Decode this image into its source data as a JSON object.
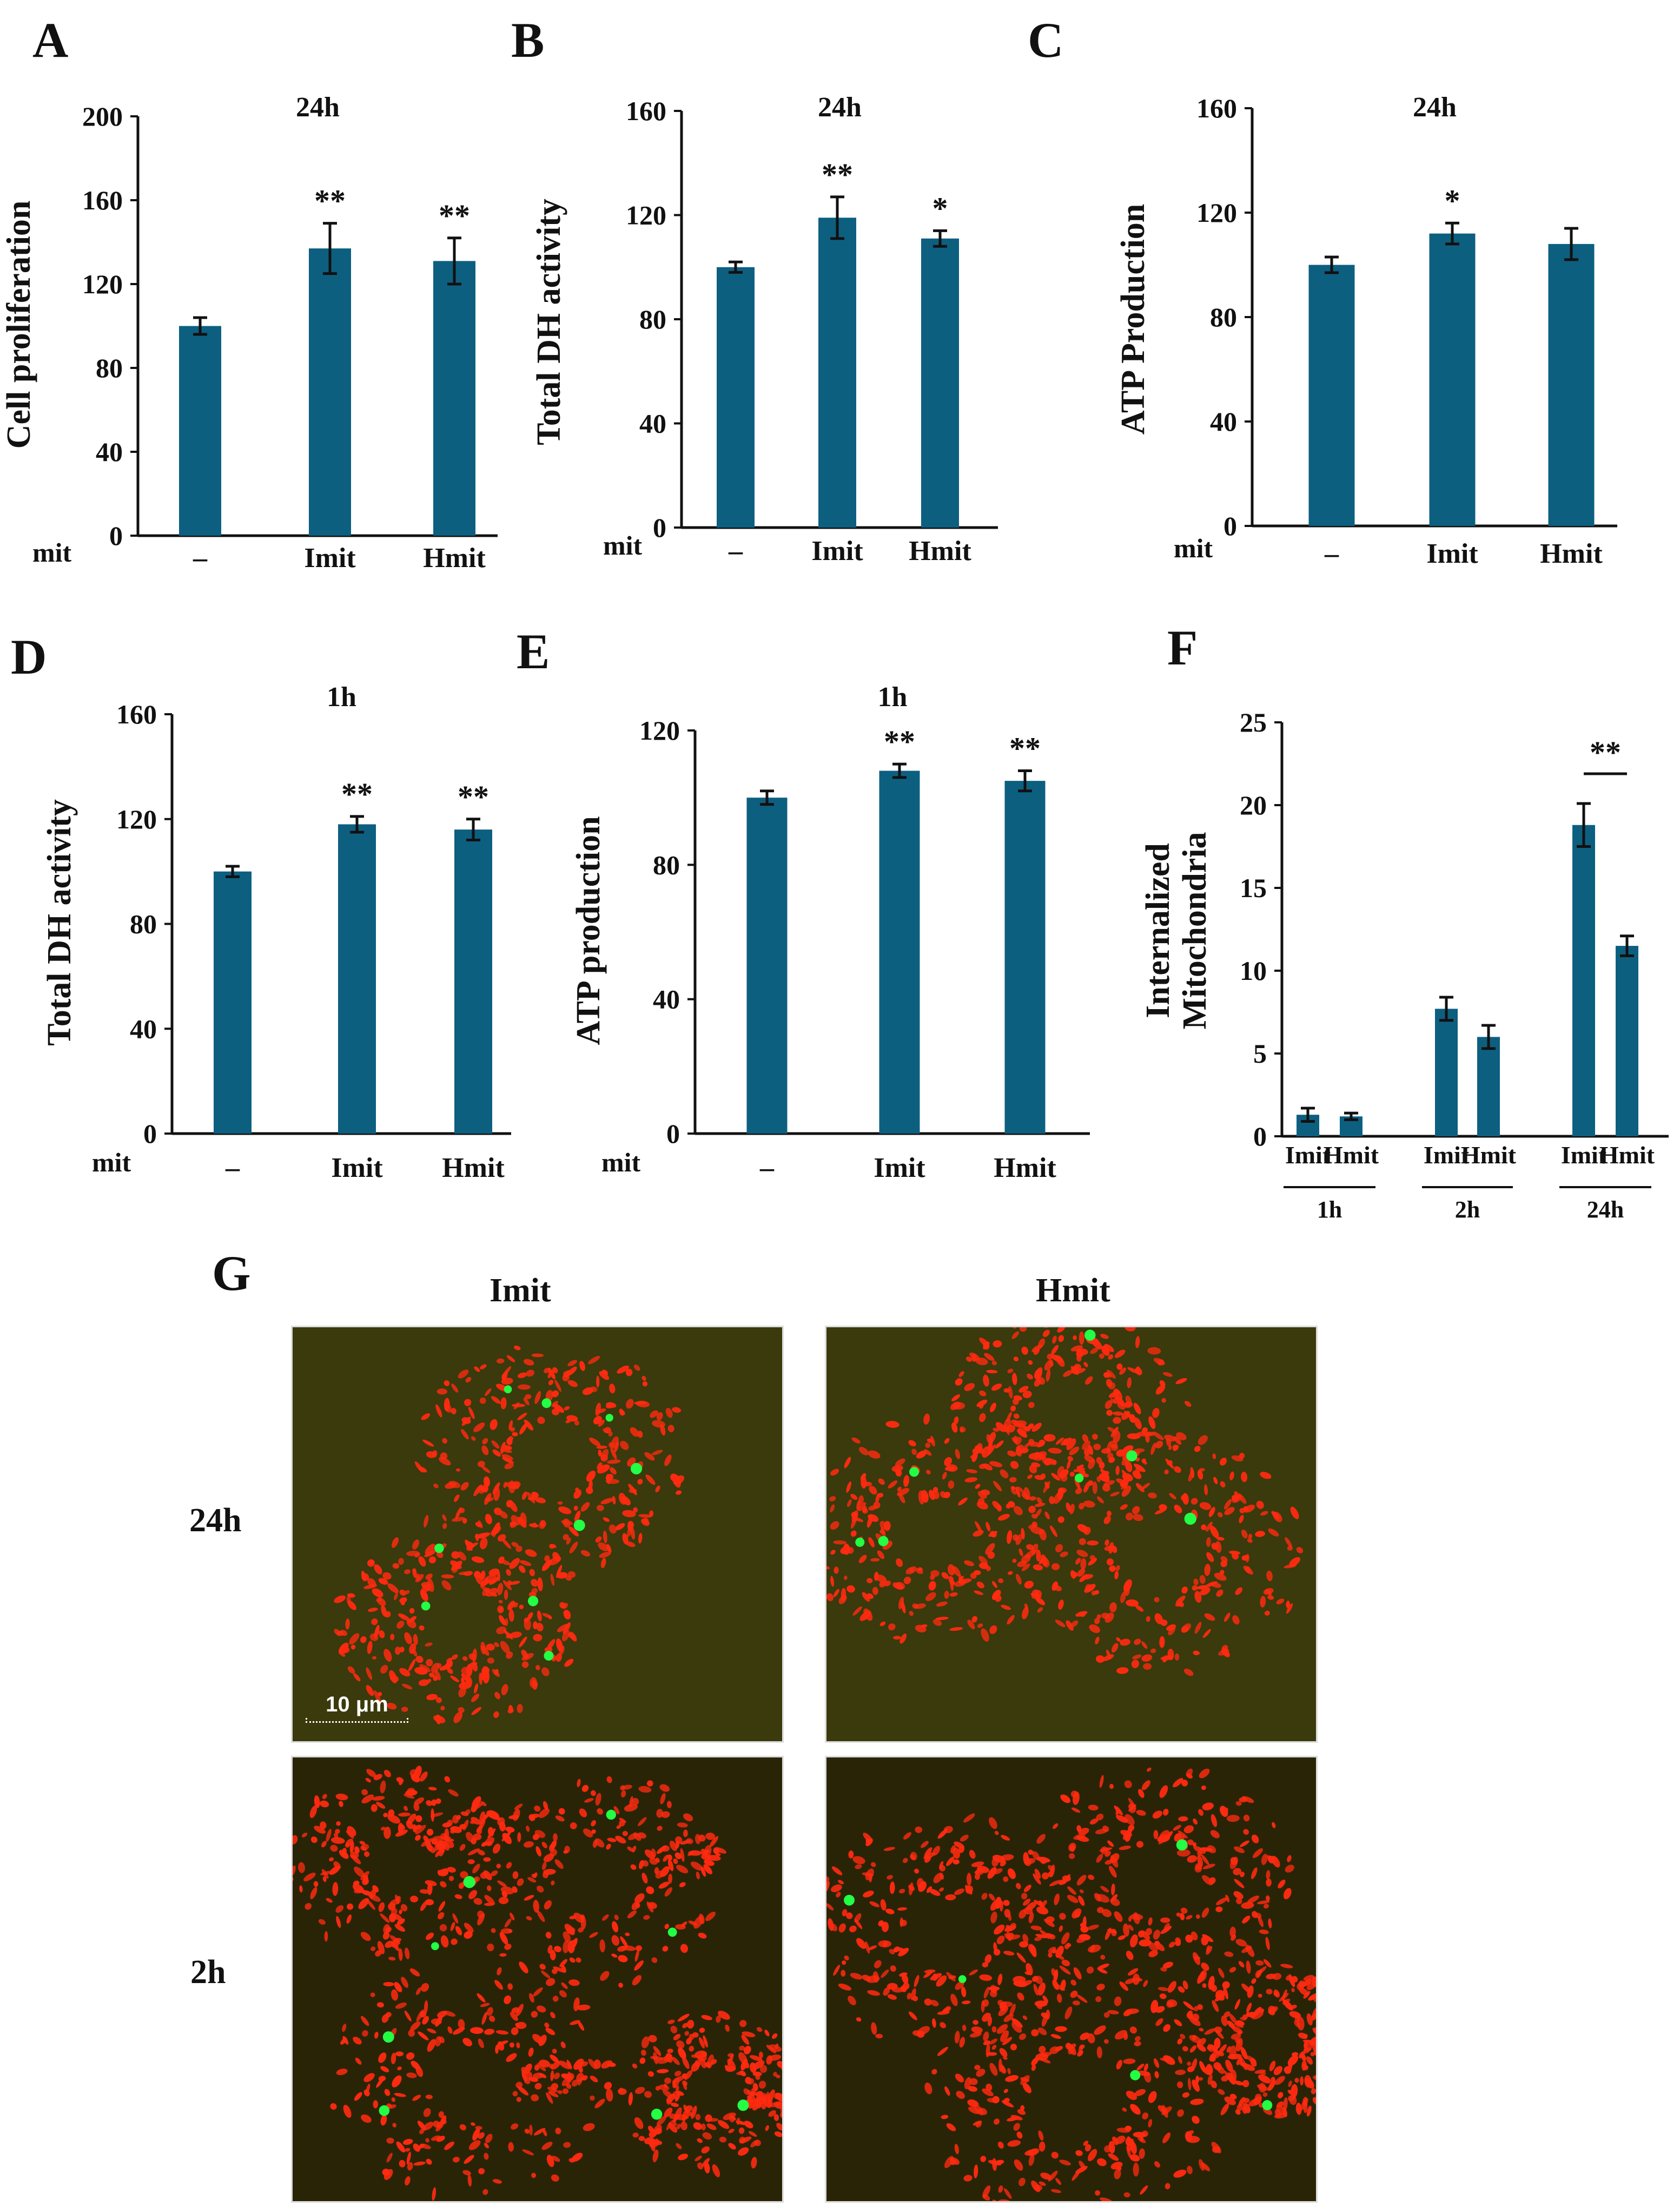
{
  "colors": {
    "bar": "#0d5f80",
    "axis": "#111111",
    "micro_bg_24h": "#3a3a0c",
    "micro_bg_2h": "#2a2406",
    "mito_red": "#ff2a10",
    "mito_green": "#22ff44"
  },
  "chart_data": [
    {
      "panel": "A",
      "type": "bar",
      "title": "24h",
      "ylabel": "Cell proliferation",
      "row_label": "mit",
      "categories": [
        "–",
        "Imit",
        "Hmit"
      ],
      "values": [
        100,
        137,
        131
      ],
      "errors": [
        4,
        12,
        11
      ],
      "significance": [
        "",
        "**",
        "**"
      ],
      "ylim": [
        0,
        200
      ],
      "yticks": [
        "0",
        "40",
        "80",
        "120",
        "160",
        "200"
      ],
      "legend": "none",
      "grid": false
    },
    {
      "panel": "B",
      "type": "bar",
      "title": "24h",
      "ylabel": "Total DH activity",
      "row_label": "mit",
      "categories": [
        "–",
        "Imit",
        "Hmit"
      ],
      "values": [
        100,
        119,
        111
      ],
      "errors": [
        2,
        8,
        3
      ],
      "significance": [
        "",
        "**",
        "*"
      ],
      "ylim": [
        0,
        160
      ],
      "yticks": [
        "0",
        "40",
        "80",
        "120",
        "160"
      ],
      "legend": "none",
      "grid": false
    },
    {
      "panel": "C",
      "type": "bar",
      "title": "24h",
      "ylabel": "ATP Production",
      "row_label": "mit",
      "categories": [
        "–",
        "Imit",
        "Hmit"
      ],
      "values": [
        100,
        112,
        108
      ],
      "errors": [
        3,
        4,
        6
      ],
      "significance": [
        "",
        "*",
        ""
      ],
      "ylim": [
        0,
        160
      ],
      "yticks": [
        "0",
        "40",
        "80",
        "120",
        "160"
      ],
      "legend": "none",
      "grid": false
    },
    {
      "panel": "D",
      "type": "bar",
      "title": "1h",
      "ylabel": "Total DH activity",
      "row_label": "mit",
      "categories": [
        "–",
        "Imit",
        "Hmit"
      ],
      "values": [
        100,
        118,
        116
      ],
      "errors": [
        2,
        3,
        4
      ],
      "significance": [
        "",
        "**",
        "**"
      ],
      "ylim": [
        0,
        160
      ],
      "yticks": [
        "0",
        "40",
        "80",
        "120",
        "160"
      ],
      "legend": "none",
      "grid": false
    },
    {
      "panel": "E",
      "type": "bar",
      "title": "1h",
      "ylabel": "ATP production",
      "row_label": "mit",
      "categories": [
        "–",
        "Imit",
        "Hmit"
      ],
      "values": [
        100,
        108,
        105
      ],
      "errors": [
        2,
        2,
        3
      ],
      "significance": [
        "",
        "**",
        "**"
      ],
      "ylim": [
        0,
        120
      ],
      "yticks": [
        "0",
        "40",
        "80",
        "120"
      ],
      "legend": "none",
      "grid": false
    },
    {
      "panel": "F",
      "type": "bar",
      "title": "",
      "ylabel": "Internalized\nMitochondria",
      "categories": [
        "Imit",
        "Hmit",
        "Imit",
        "Hmit",
        "Imit",
        "Hmit"
      ],
      "groups": [
        "1h",
        "2h",
        "24h"
      ],
      "values": [
        1.3,
        1.2,
        7.7,
        6.0,
        18.8,
        11.5
      ],
      "errors": [
        0.4,
        0.2,
        0.7,
        0.7,
        1.3,
        0.6
      ],
      "significance_label": "**",
      "ylim": [
        0,
        25
      ],
      "yticks": [
        "0",
        "5",
        "10",
        "15",
        "20",
        "25"
      ],
      "legend": "none",
      "grid": false
    }
  ],
  "panel_g": {
    "letter": "G",
    "columns": [
      "Imit",
      "Hmit"
    ],
    "rows": [
      "24h",
      "2h"
    ],
    "scale_bar": "10 μm"
  }
}
